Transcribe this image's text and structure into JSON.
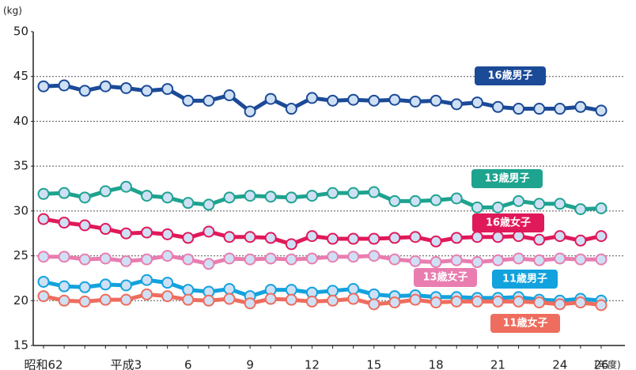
{
  "chart_data": {
    "type": "line",
    "y_unit": "(kg)",
    "x_unit": "(年度)",
    "categories": [
      "昭和62",
      null,
      null,
      null,
      "平成3",
      null,
      null,
      "6",
      null,
      null,
      "9",
      null,
      null,
      "12",
      null,
      null,
      "15",
      null,
      null,
      "18",
      null,
      null,
      "21",
      null,
      null,
      "24",
      null,
      "26"
    ],
    "ylim": [
      15,
      50
    ],
    "yticks": [
      15,
      20,
      25,
      30,
      35,
      40,
      45,
      50
    ],
    "grid": true,
    "series": [
      {
        "name": "16歳男子",
        "color": "#1b4a97",
        "values": [
          43.9,
          44.0,
          43.4,
          43.9,
          43.7,
          43.4,
          43.6,
          42.3,
          42.3,
          42.9,
          41.1,
          42.5,
          41.4,
          42.6,
          42.3,
          42.4,
          42.3,
          42.4,
          42.2,
          42.3,
          41.9,
          42.1,
          41.6,
          41.4,
          41.4,
          41.4,
          41.6,
          41.2
        ]
      },
      {
        "name": "13歳男子",
        "color": "#1ea38f",
        "values": [
          31.9,
          32.0,
          31.5,
          32.2,
          32.7,
          31.7,
          31.5,
          30.9,
          30.7,
          31.5,
          31.7,
          31.6,
          31.5,
          31.7,
          32.0,
          32.0,
          32.1,
          31.1,
          31.1,
          31.2,
          31.4,
          30.4,
          30.4,
          31.1,
          30.8,
          30.8,
          30.2,
          30.3
        ]
      },
      {
        "name": "16歳女子",
        "color": "#e0195a",
        "values": [
          29.1,
          28.7,
          28.4,
          28.0,
          27.5,
          27.6,
          27.4,
          27.0,
          27.7,
          27.1,
          27.1,
          27.0,
          26.3,
          27.2,
          26.9,
          26.9,
          26.9,
          27.0,
          27.1,
          26.6,
          27.0,
          27.1,
          27.1,
          27.2,
          26.8,
          27.2,
          26.7,
          27.2
        ]
      },
      {
        "name": "13歳女子",
        "color": "#e97db0",
        "values": [
          24.9,
          24.9,
          24.6,
          24.7,
          24.4,
          24.6,
          25.0,
          24.6,
          24.1,
          24.7,
          24.6,
          24.7,
          24.6,
          24.7,
          24.9,
          24.9,
          25.0,
          24.6,
          24.4,
          24.3,
          24.5,
          24.3,
          24.5,
          24.7,
          24.5,
          24.7,
          24.6,
          24.6
        ]
      },
      {
        "name": "11歳男子",
        "color": "#12a2dd",
        "values": [
          22.1,
          21.6,
          21.5,
          21.8,
          21.7,
          22.3,
          22.0,
          21.2,
          21.0,
          21.3,
          20.5,
          21.2,
          21.2,
          20.9,
          21.1,
          21.3,
          20.7,
          20.5,
          20.6,
          20.4,
          20.4,
          20.3,
          20.3,
          20.4,
          20.1,
          20.0,
          20.2,
          20.0
        ]
      },
      {
        "name": "11歳女子",
        "color": "#ee6d5e",
        "values": [
          20.5,
          20.0,
          19.9,
          20.1,
          20.1,
          20.7,
          20.5,
          20.1,
          20.0,
          20.2,
          19.7,
          20.2,
          20.1,
          19.9,
          20.0,
          20.2,
          19.6,
          19.8,
          20.1,
          19.8,
          19.9,
          19.9,
          19.9,
          19.9,
          19.8,
          19.6,
          19.8,
          19.5
        ]
      }
    ]
  }
}
